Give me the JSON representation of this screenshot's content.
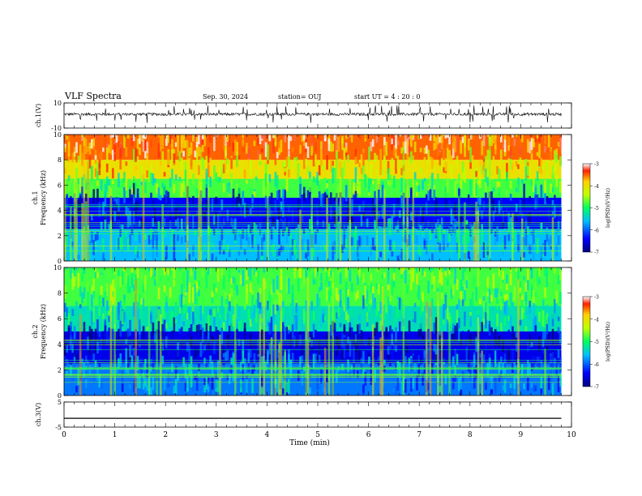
{
  "header": {
    "title": "VLF Spectra",
    "date": "Sep. 30, 2024",
    "station": "station= OUJ",
    "start": "start  UT =   4 : 20 : 0"
  },
  "chart_data": [
    {
      "type": "line",
      "ylabel": "ch.1(V)",
      "ylim": [
        -10,
        10
      ],
      "yticks": [
        "10",
        "-10"
      ],
      "xlim": [
        0,
        10
      ],
      "data_range_min": [
        0,
        9.8
      ],
      "baseline": 1,
      "noise_band": [
        -1,
        3
      ]
    },
    {
      "type": "heatmap",
      "ylabel_top": "ch.1",
      "ylabel": "Frequency  (kHz)",
      "ylim": [
        0,
        10
      ],
      "yticks": [
        "0",
        "2",
        "4",
        "6",
        "8",
        "10"
      ],
      "xlim": [
        0,
        10
      ],
      "data_range_min": [
        0,
        9.8
      ],
      "colorbar": {
        "label": "log(PSD)(V²/Hz)",
        "range": [
          -7,
          -3
        ],
        "ticks": [
          "-3",
          "-4",
          "-5",
          "-6",
          "-7"
        ]
      },
      "bands_khz": [
        {
          "from": 0,
          "to": 2.5,
          "level": -5.6
        },
        {
          "from": 2.5,
          "to": 5,
          "level": -6.4
        },
        {
          "from": 5,
          "to": 6.5,
          "level": -4.8
        },
        {
          "from": 6.5,
          "to": 8,
          "level": -4.0
        },
        {
          "from": 8,
          "to": 10,
          "level": -3.5
        }
      ]
    },
    {
      "type": "heatmap",
      "ylabel_top": "ch.2",
      "ylabel": "Frequency  (kHz)",
      "ylim": [
        0,
        10
      ],
      "yticks": [
        "0",
        "2",
        "4",
        "6",
        "8",
        "10"
      ],
      "xlim": [
        0,
        10
      ],
      "data_range_min": [
        0,
        9.8
      ],
      "colorbar": {
        "label": "log(PSD)(V²/Hz)",
        "range": [
          -7,
          -3
        ],
        "ticks": [
          "-3",
          "-4",
          "-5",
          "-6",
          "-7"
        ]
      },
      "bands_khz": [
        {
          "from": 0,
          "to": 2.5,
          "level": -5.9
        },
        {
          "from": 2.5,
          "to": 5,
          "level": -6.5
        },
        {
          "from": 5,
          "to": 7,
          "level": -5.3
        },
        {
          "from": 7,
          "to": 10,
          "level": -4.8
        }
      ]
    },
    {
      "type": "line",
      "ylabel": "ch.3(V)",
      "ylim": [
        -5,
        5
      ],
      "yticks": [
        "5",
        "-5"
      ],
      "xlim": [
        0,
        10
      ],
      "data_range_min": [
        0,
        9.8
      ],
      "baseline": -1.5,
      "xlabel": "Time  (min)",
      "xticks": [
        "0",
        "1",
        "2",
        "3",
        "4",
        "5",
        "6",
        "7",
        "8",
        "9",
        "10"
      ]
    }
  ]
}
